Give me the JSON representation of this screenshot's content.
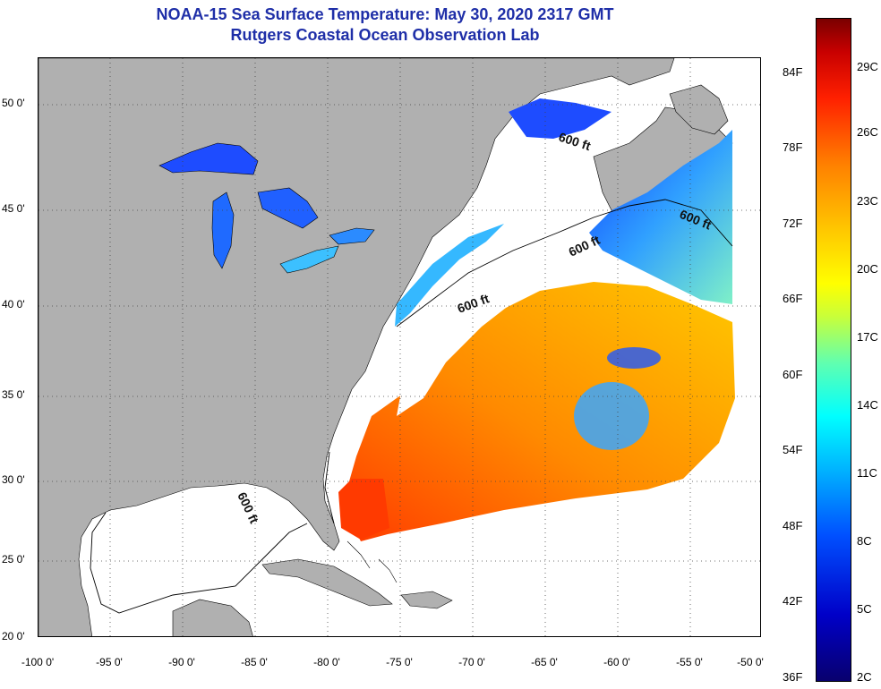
{
  "title": {
    "line1": "NOAA-15 Sea Surface Temperature:  May 30, 2020 2317 GMT",
    "line2": "Rutgers Coastal Ocean Observation Lab"
  },
  "map": {
    "lat_ticks": [
      "50 0'",
      "45 0'",
      "40 0'",
      "35 0'",
      "30 0'",
      "25 0'",
      "20 0'"
    ],
    "lon_ticks": [
      "-100 0'",
      "-95 0'",
      "-90 0'",
      "-85 0'",
      "-80 0'",
      "-75 0'",
      "-70 0'",
      "-65 0'",
      "-60 0'",
      "-55 0'",
      "-50 0'"
    ],
    "depth_labels": [
      "600 ft",
      "600 ft",
      "600 ft",
      "600 ft",
      "600 ft"
    ],
    "colors": {
      "land": "#b0b0b0",
      "cloud": "#ffffff",
      "water_warm": "#ff5a10",
      "water_cool": "#1e5aff"
    }
  },
  "colorbar": {
    "fahrenheit": [
      "84F",
      "78F",
      "72F",
      "66F",
      "60F",
      "54F",
      "48F",
      "42F",
      "36F"
    ],
    "celsius": [
      "29C",
      "26C",
      "23C",
      "20C",
      "17C",
      "14C",
      "11C",
      "8C",
      "5C",
      "2C"
    ]
  }
}
